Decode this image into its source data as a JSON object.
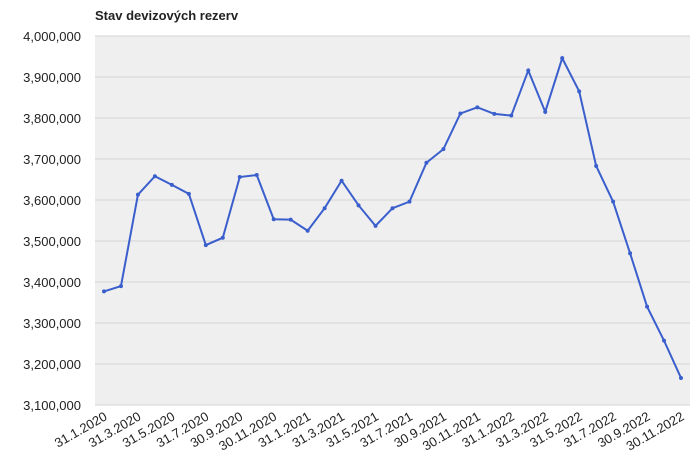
{
  "chart_data": {
    "type": "line",
    "title": "Stav devizových rezerv",
    "categories": [
      "31.1.2020",
      null,
      "31.3.2020",
      null,
      "31.5.2020",
      null,
      "31.7.2020",
      null,
      "30.9.2020",
      null,
      "30.11.2020",
      null,
      "31.1.2021",
      null,
      "31.3.2021",
      null,
      "31.5.2021",
      null,
      "31.7.2021",
      null,
      "30.9.2021",
      null,
      "30.11.2021",
      null,
      "31.1.2022",
      null,
      "31.3.2022",
      null,
      "31.5.2022",
      null,
      "31.7.2022",
      null,
      "30.9.2022",
      null,
      "30.11.2022"
    ],
    "series": [
      {
        "color": "#3a5fcd",
        "values": [
          3377000,
          3390000,
          3613000,
          3658000,
          3637000,
          3615000,
          3490000,
          3508000,
          3656000,
          3661000,
          3553000,
          3552000,
          3525000,
          3580000,
          3647000,
          3587000,
          3537000,
          3580000,
          3596000,
          3691000,
          3724000,
          3811000,
          3826000,
          3810000,
          3806000,
          3916000,
          3815000,
          3946000,
          3865000,
          3683000,
          3596000,
          3470000,
          3340000,
          3257000,
          3166000
        ]
      }
    ],
    "ylim": [
      3100000,
      4000000
    ],
    "yticks": [
      {
        "value": 3100000,
        "label": "3,100,000"
      },
      {
        "value": 3200000,
        "label": "3,200,000"
      },
      {
        "value": 3300000,
        "label": "3,300,000"
      },
      {
        "value": 3400000,
        "label": "3,400,000"
      },
      {
        "value": 3500000,
        "label": "3,500,000"
      },
      {
        "value": 3600000,
        "label": "3,600,000"
      },
      {
        "value": 3700000,
        "label": "3,700,000"
      },
      {
        "value": 3800000,
        "label": "3,800,000"
      },
      {
        "value": 3900000,
        "label": "3,900,000"
      },
      {
        "value": 4000000,
        "label": "4,000,000"
      }
    ],
    "grid": true
  }
}
